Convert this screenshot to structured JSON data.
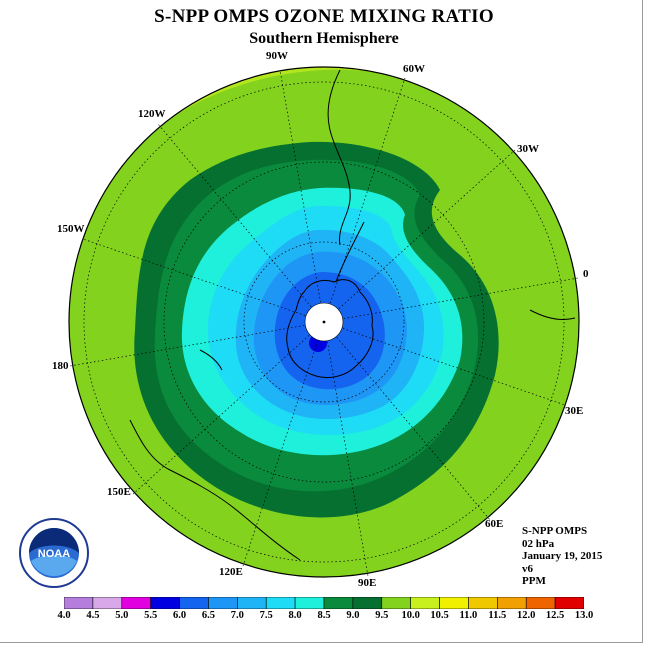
{
  "title": "S-NPP OMPS OZONE MIXING RATIO",
  "subtitle": "Southern Hemisphere",
  "longitude_labels": [
    "90W",
    "60W",
    "30W",
    "0",
    "30E",
    "60E",
    "90E",
    "120E",
    "150E",
    "180",
    "150W",
    "120W"
  ],
  "info": {
    "instrument": "S-NPP OMPS",
    "level": "02 hPa",
    "date": "January 19, 2015",
    "version": "v6",
    "units": "PPM"
  },
  "logo": {
    "text": "NOAA",
    "icon": "noaa-logo-icon"
  },
  "colorbar": {
    "ticks": [
      "4.0",
      "4.5",
      "5.0",
      "5.5",
      "6.0",
      "6.5",
      "7.0",
      "7.5",
      "8.0",
      "8.5",
      "9.0",
      "9.5",
      "10.0",
      "10.5",
      "11.0",
      "11.5",
      "12.0",
      "12.5",
      "13.0"
    ],
    "colors": [
      "#b57edc",
      "#d8a8e8",
      "#e000e0",
      "#0000e0",
      "#1464f0",
      "#1e96f5",
      "#1eb4f5",
      "#1edcf5",
      "#1ef0dc",
      "#0a8a3c",
      "#057030",
      "#82d21e",
      "#c8f01e",
      "#f0f000",
      "#f0c800",
      "#f0a000",
      "#f06400",
      "#e00000",
      "#8b5a2b"
    ]
  },
  "contour_colors": {
    "outer": "#b3e61e",
    "band_9_5": "#82d21e",
    "band_9_0": "#057030",
    "band_8_5": "#0a8a3c",
    "band_8_0": "#1ef0dc",
    "band_7_5": "#1edcf5",
    "band_7_0": "#1eb4f5",
    "band_6_5": "#1e96f5",
    "band_6_0": "#1464f0",
    "band_5_5": "#0000e0"
  }
}
